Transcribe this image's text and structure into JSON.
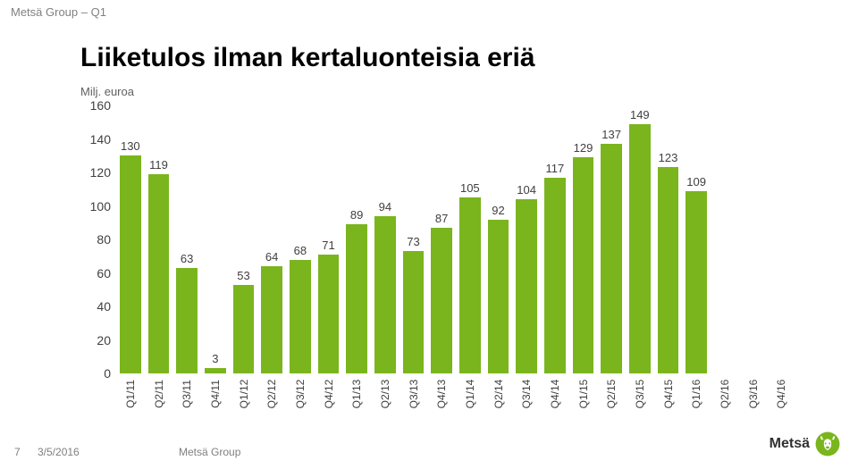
{
  "header": "Metsä Group – Q1",
  "title": "Liiketulos ilman kertaluonteisia eriä",
  "subtitle": "Milj. euroa",
  "chart": {
    "type": "bar",
    "ylim": [
      0,
      160
    ],
    "ytick_step": 20,
    "yticks": [
      0,
      20,
      40,
      60,
      80,
      100,
      120,
      140,
      160
    ],
    "categories": [
      "Q1/11",
      "Q2/11",
      "Q3/11",
      "Q4/11",
      "Q1/12",
      "Q2/12",
      "Q3/12",
      "Q4/12",
      "Q1/13",
      "Q2/13",
      "Q3/13",
      "Q4/13",
      "Q1/14",
      "Q2/14",
      "Q3/14",
      "Q4/14",
      "Q1/15",
      "Q2/15",
      "Q3/15",
      "Q4/15",
      "Q1/16",
      "Q2/16",
      "Q3/16",
      "Q4/16"
    ],
    "values": [
      130,
      119,
      63,
      3,
      53,
      64,
      68,
      71,
      89,
      94,
      73,
      87,
      105,
      92,
      104,
      117,
      129,
      137,
      149,
      123,
      109,
      null,
      null,
      null
    ],
    "bar_color": "#7ab51d",
    "bar_width_ratio": 0.75,
    "axis_font_size": 14,
    "label_font_size": 13,
    "xlabel_font_size": 12,
    "label_color": "#404040",
    "background_color": "#ffffff"
  },
  "footer": {
    "slide_number": "7",
    "date": "3/5/2016",
    "company": "Metsä Group"
  },
  "logo": {
    "text": "Metsä",
    "icon_name": "moose-icon",
    "icon_color": "#7ab51d"
  }
}
